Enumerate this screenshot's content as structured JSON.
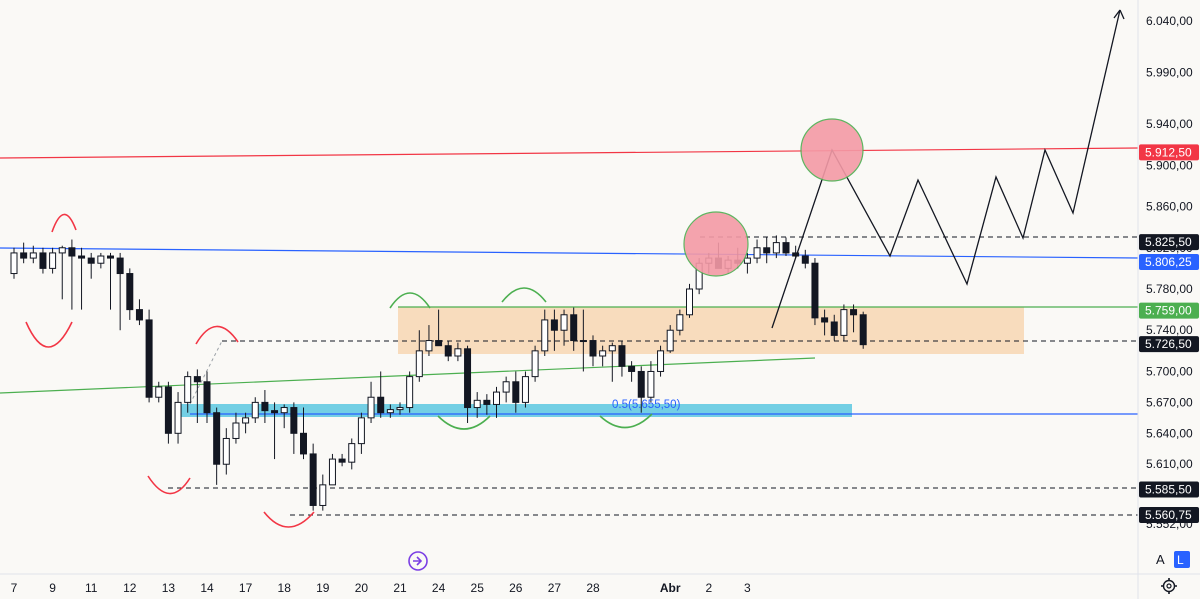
{
  "chart_data": {
    "type": "candlestick",
    "y_axis": {
      "range": [
        5520,
        6065
      ],
      "ticks": [
        "6.040,00",
        "5.990,00",
        "5.940,00",
        "5.900,00",
        "5.860,00",
        "5.820,00",
        "5.780,00",
        "5.740,00",
        "5.700,00",
        "5.670,00",
        "5.640,00",
        "5.610,00",
        "5.552,00"
      ],
      "tick_values": [
        6040,
        5990,
        5940,
        5900,
        5860,
        5820,
        5780,
        5740,
        5700,
        5670,
        5640,
        5610,
        5552
      ]
    },
    "x_axis": {
      "ticks": [
        "7",
        "9",
        "11",
        "12",
        "13",
        "14",
        "17",
        "18",
        "19",
        "20",
        "21",
        "24",
        "25",
        "26",
        "27",
        "28",
        "Abr",
        "2",
        "3"
      ],
      "tick_index": [
        0,
        4,
        8,
        12,
        16,
        20,
        24,
        28,
        32,
        36,
        40,
        44,
        48,
        52,
        56,
        60,
        68,
        72,
        76
      ]
    },
    "price_labels": [
      {
        "text": "5.912,50",
        "value": 5912.5,
        "color": "#f23645",
        "text_color": "#ffffff"
      },
      {
        "text": "5.825,50",
        "value": 5825.5,
        "color": "#131722",
        "text_color": "#ffffff"
      },
      {
        "text": "5.806,25",
        "value": 5806.25,
        "color": "#2962ff",
        "text_color": "#ffffff"
      },
      {
        "text": "5.759,00",
        "value": 5759,
        "color": "#4caf50",
        "text_color": "#ffffff"
      },
      {
        "text": "5.726,50",
        "value": 5726.5,
        "color": "#131722",
        "text_color": "#ffffff"
      },
      {
        "text": "5.585,50",
        "value": 5585.5,
        "color": "#131722",
        "text_color": "#ffffff"
      },
      {
        "text": "5.560,75",
        "value": 5560.75,
        "color": "#131722",
        "text_color": "#ffffff"
      }
    ],
    "annotation_text": "0.5(5.655,50)",
    "candles": [
      [
        0,
        5795,
        5820,
        5790,
        5815
      ],
      [
        1,
        5815,
        5825,
        5805,
        5810
      ],
      [
        2,
        5810,
        5822,
        5805,
        5815
      ],
      [
        3,
        5815,
        5820,
        5795,
        5800
      ],
      [
        4,
        5800,
        5820,
        5795,
        5815
      ],
      [
        5,
        5815,
        5822,
        5770,
        5820
      ],
      [
        6,
        5820,
        5828,
        5760,
        5812
      ],
      [
        7,
        5812,
        5820,
        5760,
        5810
      ],
      [
        8,
        5810,
        5815,
        5790,
        5805
      ],
      [
        9,
        5805,
        5815,
        5800,
        5812
      ],
      [
        10,
        5812,
        5815,
        5760,
        5810
      ],
      [
        11,
        5810,
        5815,
        5740,
        5795
      ],
      [
        12,
        5795,
        5800,
        5750,
        5760
      ],
      [
        13,
        5760,
        5770,
        5745,
        5750
      ],
      [
        14,
        5750,
        5760,
        5670,
        5675
      ],
      [
        15,
        5675,
        5690,
        5670,
        5685
      ],
      [
        16,
        5685,
        5690,
        5630,
        5640
      ],
      [
        17,
        5640,
        5680,
        5630,
        5670
      ],
      [
        18,
        5670,
        5700,
        5660,
        5695
      ],
      [
        19,
        5695,
        5702,
        5650,
        5690
      ],
      [
        20,
        5690,
        5700,
        5650,
        5660
      ],
      [
        21,
        5660,
        5665,
        5590,
        5610
      ],
      [
        22,
        5610,
        5645,
        5600,
        5635
      ],
      [
        23,
        5635,
        5660,
        5630,
        5650
      ],
      [
        24,
        5650,
        5660,
        5640,
        5655
      ],
      [
        25,
        5655,
        5675,
        5650,
        5670
      ],
      [
        26,
        5670,
        5682,
        5650,
        5662
      ],
      [
        27,
        5662,
        5670,
        5615,
        5660
      ],
      [
        28,
        5660,
        5668,
        5645,
        5665
      ],
      [
        29,
        5665,
        5670,
        5620,
        5640
      ],
      [
        30,
        5640,
        5665,
        5615,
        5620
      ],
      [
        31,
        5620,
        5630,
        5565,
        5570
      ],
      [
        32,
        5570,
        5600,
        5565,
        5590
      ],
      [
        33,
        5590,
        5620,
        5590,
        5615
      ],
      [
        34,
        5615,
        5620,
        5608,
        5612
      ],
      [
        35,
        5612,
        5635,
        5605,
        5630
      ],
      [
        36,
        5630,
        5660,
        5620,
        5655
      ],
      [
        37,
        5655,
        5690,
        5650,
        5675
      ],
      [
        38,
        5675,
        5700,
        5655,
        5660
      ],
      [
        39,
        5660,
        5668,
        5655,
        5663
      ],
      [
        40,
        5663,
        5670,
        5658,
        5665
      ],
      [
        41,
        5665,
        5700,
        5660,
        5695
      ],
      [
        42,
        5695,
        5740,
        5690,
        5720
      ],
      [
        43,
        5720,
        5745,
        5715,
        5730
      ],
      [
        44,
        5730,
        5760,
        5725,
        5725
      ],
      [
        45,
        5725,
        5730,
        5710,
        5715
      ],
      [
        46,
        5715,
        5728,
        5710,
        5722
      ],
      [
        47,
        5722,
        5725,
        5650,
        5665
      ],
      [
        48,
        5665,
        5680,
        5655,
        5672
      ],
      [
        49,
        5672,
        5678,
        5658,
        5668
      ],
      [
        50,
        5668,
        5685,
        5655,
        5680
      ],
      [
        51,
        5680,
        5695,
        5670,
        5690
      ],
      [
        52,
        5690,
        5700,
        5660,
        5670
      ],
      [
        53,
        5670,
        5700,
        5665,
        5695
      ],
      [
        54,
        5695,
        5725,
        5690,
        5720
      ],
      [
        55,
        5720,
        5760,
        5715,
        5750
      ],
      [
        56,
        5750,
        5760,
        5720,
        5740
      ],
      [
        57,
        5740,
        5760,
        5725,
        5755
      ],
      [
        58,
        5755,
        5762,
        5720,
        5730
      ],
      [
        59,
        5730,
        5760,
        5700,
        5730
      ],
      [
        60,
        5730,
        5735,
        5705,
        5715
      ],
      [
        61,
        5715,
        5725,
        5705,
        5720
      ],
      [
        62,
        5720,
        5728,
        5690,
        5725
      ],
      [
        63,
        5725,
        5730,
        5695,
        5705
      ],
      [
        64,
        5705,
        5710,
        5690,
        5700
      ],
      [
        65,
        5700,
        5705,
        5660,
        5675
      ],
      [
        66,
        5675,
        5710,
        5670,
        5700
      ],
      [
        67,
        5700,
        5725,
        5695,
        5720
      ],
      [
        68,
        5720,
        5745,
        5718,
        5740
      ],
      [
        69,
        5740,
        5760,
        5735,
        5755
      ],
      [
        70,
        5755,
        5785,
        5752,
        5780
      ],
      [
        71,
        5780,
        5810,
        5775,
        5805
      ],
      [
        72,
        5805,
        5815,
        5795,
        5810
      ],
      [
        73,
        5810,
        5825,
        5800,
        5800
      ],
      [
        74,
        5800,
        5812,
        5795,
        5808
      ],
      [
        75,
        5808,
        5820,
        5800,
        5805
      ],
      [
        76,
        5805,
        5815,
        5795,
        5810
      ],
      [
        77,
        5810,
        5828,
        5805,
        5820
      ],
      [
        78,
        5820,
        5830,
        5805,
        5815
      ],
      [
        79,
        5815,
        5832,
        5810,
        5825
      ],
      [
        80,
        5825,
        5830,
        5812,
        5815
      ],
      [
        81,
        5815,
        5822,
        5810,
        5812
      ],
      [
        82,
        5812,
        5818,
        5800,
        5805
      ],
      [
        83,
        5805,
        5810,
        5745,
        5752
      ],
      [
        84,
        5752,
        5760,
        5735,
        5748
      ],
      [
        85,
        5748,
        5755,
        5730,
        5735
      ],
      [
        86,
        5735,
        5765,
        5730,
        5760
      ],
      [
        87,
        5760,
        5765,
        5738,
        5755
      ],
      [
        88,
        5755,
        5758,
        5722,
        5726
      ]
    ]
  },
  "watermark_icon": "replay-icon",
  "axis_controls": {
    "auto_label": "A",
    "log_label": "L"
  },
  "settings_icon": "gear-icon"
}
